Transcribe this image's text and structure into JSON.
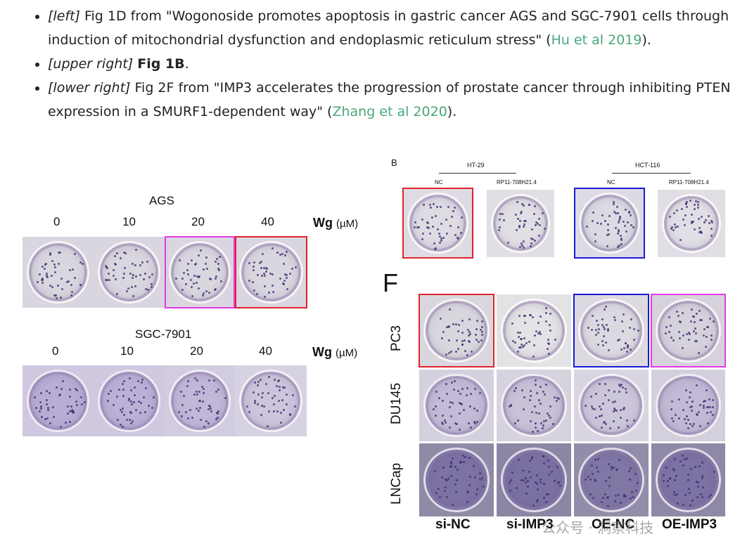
{
  "captions": [
    {
      "position": "[left]",
      "pre": " Fig 1D from \"Wogonoside promotes apoptosis in gastric cancer AGS and SGC-7901 cells through induction of mitochondrial dysfunction and endoplasmic reticulum stress\" (",
      "cite": "Hu et al 2019",
      "post": ")."
    },
    {
      "position": "[upper right]",
      "bold": "Fig 1B",
      "post": "."
    },
    {
      "position": "[lower right]",
      "pre": " Fig 2F from \"IMP3 accelerates the progression of prostate cancer through inhibiting PTEN expression in a SMURF1-dependent way\" (",
      "cite": "Zhang et al 2020",
      "post": ")."
    }
  ],
  "left_figure": {
    "panel1": {
      "cell_line": "AGS",
      "doses": [
        "0",
        "10",
        "20",
        "40"
      ],
      "unit_label": "Wg",
      "unit": "(µM)"
    },
    "panel2": {
      "cell_line": "SGC-7901",
      "doses": [
        "0",
        "10",
        "20",
        "40"
      ],
      "unit_label": "Wg",
      "unit": "(µM)"
    }
  },
  "upper_right_figure": {
    "panel_letter": "B",
    "groups": [
      {
        "cell_line": "HT-29",
        "conditions": [
          "NC",
          "RP11-708H21.4"
        ]
      },
      {
        "cell_line": "HCT-116",
        "conditions": [
          "NC",
          "RP11-708H21.4"
        ]
      }
    ]
  },
  "lower_right_figure": {
    "panel_letter": "F",
    "rows": [
      "PC3",
      "DU145",
      "LNCap"
    ],
    "columns": [
      "si-NC",
      "si-IMP3",
      "OE-NC",
      "OE-IMP3"
    ]
  },
  "watermark": "公众号 · 洞察科技",
  "highlight_colors": {
    "red": "#e0242c",
    "magenta": "#e43ae8",
    "blue": "#1a1ad6"
  }
}
